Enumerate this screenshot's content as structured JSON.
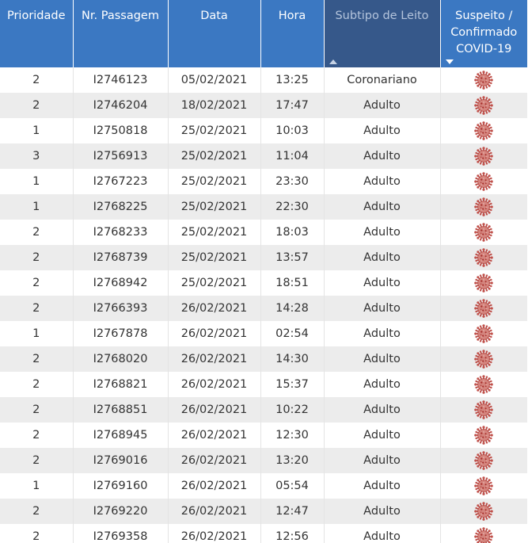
{
  "table": {
    "headers": {
      "prioridade": "Prioridade",
      "passagem": "Nr. Passagem",
      "data": "Data",
      "hora": "Hora",
      "subtipo": "Subtipo de Leito",
      "covid_line1": "Suspeito /",
      "covid_line2": "Confirmado",
      "covid_line3": "COVID-19"
    },
    "sort": {
      "subtipo": "ascending",
      "covid": "descending"
    },
    "covid_icon": "coronavirus-icon",
    "rows": [
      {
        "prioridade": "2",
        "passagem": "I2746123",
        "data": "05/02/2021",
        "hora": "13:25",
        "subtipo": "Coronariano"
      },
      {
        "prioridade": "2",
        "passagem": "I2746204",
        "data": "18/02/2021",
        "hora": "17:47",
        "subtipo": "Adulto"
      },
      {
        "prioridade": "1",
        "passagem": "I2750818",
        "data": "25/02/2021",
        "hora": "10:03",
        "subtipo": "Adulto"
      },
      {
        "prioridade": "3",
        "passagem": "I2756913",
        "data": "25/02/2021",
        "hora": "11:04",
        "subtipo": "Adulto"
      },
      {
        "prioridade": "1",
        "passagem": "I2767223",
        "data": "25/02/2021",
        "hora": "23:30",
        "subtipo": "Adulto"
      },
      {
        "prioridade": "1",
        "passagem": "I2768225",
        "data": "25/02/2021",
        "hora": "22:30",
        "subtipo": "Adulto"
      },
      {
        "prioridade": "2",
        "passagem": "I2768233",
        "data": "25/02/2021",
        "hora": "18:03",
        "subtipo": "Adulto"
      },
      {
        "prioridade": "2",
        "passagem": "I2768739",
        "data": "25/02/2021",
        "hora": "13:57",
        "subtipo": "Adulto"
      },
      {
        "prioridade": "2",
        "passagem": "I2768942",
        "data": "25/02/2021",
        "hora": "18:51",
        "subtipo": "Adulto"
      },
      {
        "prioridade": "2",
        "passagem": "I2766393",
        "data": "26/02/2021",
        "hora": "14:28",
        "subtipo": "Adulto"
      },
      {
        "prioridade": "1",
        "passagem": "I2767878",
        "data": "26/02/2021",
        "hora": "02:54",
        "subtipo": "Adulto"
      },
      {
        "prioridade": "2",
        "passagem": "I2768020",
        "data": "26/02/2021",
        "hora": "14:30",
        "subtipo": "Adulto"
      },
      {
        "prioridade": "2",
        "passagem": "I2768821",
        "data": "26/02/2021",
        "hora": "15:37",
        "subtipo": "Adulto"
      },
      {
        "prioridade": "2",
        "passagem": "I2768851",
        "data": "26/02/2021",
        "hora": "10:22",
        "subtipo": "Adulto"
      },
      {
        "prioridade": "2",
        "passagem": "I2768945",
        "data": "26/02/2021",
        "hora": "12:30",
        "subtipo": "Adulto"
      },
      {
        "prioridade": "2",
        "passagem": "I2769016",
        "data": "26/02/2021",
        "hora": "13:20",
        "subtipo": "Adulto"
      },
      {
        "prioridade": "1",
        "passagem": "I2769160",
        "data": "26/02/2021",
        "hora": "05:54",
        "subtipo": "Adulto"
      },
      {
        "prioridade": "2",
        "passagem": "I2769220",
        "data": "26/02/2021",
        "hora": "12:47",
        "subtipo": "Adulto"
      },
      {
        "prioridade": "2",
        "passagem": "I2769358",
        "data": "26/02/2021",
        "hora": "12:56",
        "subtipo": "Adulto"
      }
    ]
  }
}
